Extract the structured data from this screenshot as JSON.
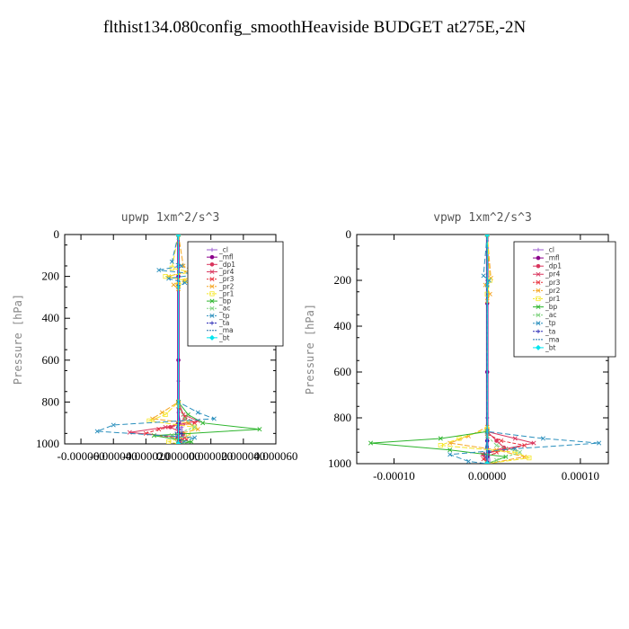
{
  "title": "flthist134.080config_smoothHeaviside  BUDGET at275E,-2N",
  "chart_data": [
    {
      "type": "line",
      "panel_title": "upwp   1xm^2/s^3",
      "ylabel": "Pressure [hPa]",
      "ylim": [
        1000,
        0
      ],
      "xlim": [
        -7e-05,
        6e-05
      ],
      "x_tick_labels": [
        "-0.000060",
        "-0.000040",
        "-0.000020",
        "0.000000",
        "0.000020",
        "0.000040",
        "0.000060"
      ],
      "x_tick_values": [
        -6e-05,
        -4e-05,
        -2e-05,
        0,
        2e-05,
        4e-05,
        6e-05
      ],
      "y_tick_labels": [
        "0",
        "200",
        "400",
        "600",
        "800",
        "1000"
      ],
      "y_tick_values": [
        0,
        200,
        400,
        600,
        800,
        1000
      ],
      "legend": [
        "_cl",
        "_mfl",
        "_dp1",
        "_pr4",
        "_pr3",
        "_pr2",
        "_pr1",
        "_bp",
        "_ac",
        "_tp",
        "_ta",
        "_ma",
        "_bt"
      ],
      "series": [
        {
          "name": "_cl",
          "color": "#9b59d0",
          "marker": "+",
          "dash": "",
          "y": [
            0,
            150,
            200,
            700,
            850,
            920,
            960,
            1000
          ],
          "x": [
            0,
            0,
            0,
            0,
            0,
            2e-06,
            3e-06,
            3e-06
          ]
        },
        {
          "name": "_mfl",
          "color": "#8b008b",
          "marker": "o",
          "dash": "",
          "y": [
            0,
            200,
            600,
            800,
            900,
            950,
            1000
          ],
          "x": [
            0,
            0,
            0,
            0,
            0,
            0,
            0
          ]
        },
        {
          "name": "_dp1",
          "color": "#d9365e",
          "marker": "o",
          "dash": "",
          "y": [
            0,
            800,
            880,
            920,
            950,
            1000
          ],
          "x": [
            0,
            0,
            4e-06,
            -5e-06,
            3e-06,
            0
          ]
        },
        {
          "name": "_pr4",
          "color": "#d9365e",
          "marker": "x",
          "dash": "",
          "y": [
            0,
            800,
            860,
            890,
            920,
            945,
            970,
            1000
          ],
          "x": [
            0,
            0,
            3e-06,
            1.2e-05,
            -8e-06,
            -3e-05,
            4e-06,
            0
          ]
        },
        {
          "name": "_pr3",
          "color": "#e8303c",
          "marker": "x",
          "dash": "4,2",
          "y": [
            0,
            820,
            870,
            900,
            930,
            950,
            980,
            1000
          ],
          "x": [
            0,
            0,
            4e-06,
            1e-05,
            -1.2e-05,
            -2e-05,
            5e-06,
            0
          ]
        },
        {
          "name": "_pr2",
          "color": "#f5a623",
          "marker": "x",
          "dash": "6,2",
          "y": [
            0,
            150,
            170,
            200,
            220,
            240,
            260,
            800,
            850,
            880,
            900,
            930,
            960,
            1000
          ],
          "x": [
            0,
            3e-06,
            8e-06,
            -6e-06,
            4e-06,
            -3e-06,
            0,
            0,
            -1e-05,
            -1.6e-05,
            6e-06,
            1.2e-05,
            -4e-06,
            0
          ]
        },
        {
          "name": "_pr1",
          "color": "#f5e623",
          "marker": "s",
          "dash": "6,2",
          "y": [
            0,
            160,
            180,
            200,
            220,
            240,
            800,
            860,
            890,
            920,
            960,
            990,
            1000
          ],
          "x": [
            0,
            -4e-06,
            8e-06,
            -8e-06,
            5e-06,
            0,
            0,
            -8e-06,
            -1.8e-05,
            1e-05,
            6e-06,
            -6e-06,
            0
          ]
        },
        {
          "name": "_bp",
          "color": "#2db52d",
          "marker": "x",
          "dash": "",
          "y": [
            0,
            800,
            860,
            900,
            930,
            960,
            990,
            1000
          ],
          "x": [
            0,
            0,
            6e-06,
            1.5e-05,
            5e-05,
            -1.5e-05,
            8e-06,
            0
          ]
        },
        {
          "name": "_ac",
          "color": "#7fd37f",
          "marker": "x",
          "dash": "3,2",
          "y": [
            0,
            820,
            880,
            920,
            960,
            1000
          ],
          "x": [
            0,
            0,
            4e-06,
            1e-05,
            -4e-06,
            0
          ]
        },
        {
          "name": "_tp",
          "color": "#2a8fbd",
          "marker": "x",
          "dash": "6,3",
          "y": [
            0,
            130,
            150,
            170,
            190,
            210,
            230,
            250,
            800,
            850,
            880,
            910,
            940,
            970,
            1000
          ],
          "x": [
            0,
            -4e-06,
            2e-06,
            -1.2e-05,
            1.2e-05,
            -6e-06,
            4e-06,
            0,
            0,
            1.2e-05,
            2.2e-05,
            -4e-05,
            -5e-05,
            1e-05,
            0
          ]
        },
        {
          "name": "_ta",
          "color": "#2a2ab5",
          "marker": "+",
          "dash": "3,3",
          "y": [
            0,
            900,
            950,
            1000
          ],
          "x": [
            0,
            0,
            2e-06,
            1e-06
          ]
        },
        {
          "name": "_ma",
          "color": "#1f6fa8",
          "marker": "-",
          "dash": "8,3",
          "y": [
            0,
            900,
            940,
            1000
          ],
          "x": [
            0,
            0,
            -2e-06,
            0
          ]
        },
        {
          "name": "_bt",
          "color": "#00e5ee",
          "marker": "d",
          "dash": "",
          "y": [
            0,
            1000
          ],
          "x": [
            0,
            0
          ]
        }
      ]
    },
    {
      "type": "line",
      "panel_title": "vpwp   1xm^2/s^3",
      "ylabel": "Pressure [hPa]",
      "ylim": [
        1000,
        0
      ],
      "xlim": [
        -0.00014,
        0.00013
      ],
      "x_tick_labels": [
        "-0.00010",
        "0.00000",
        "0.00010"
      ],
      "x_tick_values": [
        -0.0001,
        0,
        0.0001
      ],
      "y_tick_labels": [
        "0",
        "200",
        "400",
        "600",
        "800",
        "1000"
      ],
      "y_tick_values": [
        0,
        200,
        400,
        600,
        800,
        1000
      ],
      "legend": [
        "_cl",
        "_mfl",
        "_dp1",
        "_pr4",
        "_pr3",
        "_pr2",
        "_pr1",
        "_bp",
        "_ac",
        "_tp",
        "_ta",
        "_ma",
        "_bt"
      ],
      "series": [
        {
          "name": "_cl",
          "color": "#9b59d0",
          "marker": "+",
          "dash": "",
          "y": [
            0,
            200,
            800,
            900,
            950,
            1000
          ],
          "x": [
            0,
            0,
            0,
            0,
            2e-06,
            3e-06
          ]
        },
        {
          "name": "_mfl",
          "color": "#8b008b",
          "marker": "o",
          "dash": "",
          "y": [
            0,
            300,
            600,
            900,
            1000
          ],
          "x": [
            0,
            0,
            0,
            0,
            0
          ]
        },
        {
          "name": "_dp1",
          "color": "#d9365e",
          "marker": "o",
          "dash": "",
          "y": [
            0,
            860,
            900,
            930,
            960,
            1000
          ],
          "x": [
            0,
            0,
            1e-05,
            1.8e-05,
            -4e-06,
            0
          ]
        },
        {
          "name": "_pr4",
          "color": "#d9365e",
          "marker": "x",
          "dash": "",
          "y": [
            0,
            860,
            890,
            910,
            935,
            960,
            1000
          ],
          "x": [
            0,
            0,
            3e-05,
            5e-05,
            2e-05,
            -5e-06,
            0
          ]
        },
        {
          "name": "_pr3",
          "color": "#e8303c",
          "marker": "x",
          "dash": "4,2",
          "y": [
            0,
            870,
            900,
            920,
            950,
            980,
            1000
          ],
          "x": [
            0,
            0,
            1.5e-05,
            4e-05,
            1e-05,
            -4e-06,
            0
          ]
        },
        {
          "name": "_pr2",
          "color": "#f5a623",
          "marker": "x",
          "dash": "6,2",
          "y": [
            0,
            190,
            220,
            260,
            290,
            840,
            880,
            910,
            940,
            970,
            1000
          ],
          "x": [
            0,
            4e-06,
            -2e-06,
            3e-06,
            0,
            0,
            -2e-05,
            -4e-05,
            1e-05,
            4e-05,
            0
          ]
        },
        {
          "name": "_pr1",
          "color": "#f5e623",
          "marker": "s",
          "dash": "6,2",
          "y": [
            0,
            200,
            260,
            850,
            890,
            920,
            950,
            975,
            1000
          ],
          "x": [
            0,
            3e-06,
            0,
            0,
            -3e-05,
            -5e-05,
            3e-05,
            4.5e-05,
            0
          ]
        },
        {
          "name": "_bp",
          "color": "#2db52d",
          "marker": "x",
          "dash": "",
          "y": [
            0,
            860,
            890,
            910,
            940,
            970,
            1000
          ],
          "x": [
            0,
            0,
            -5e-05,
            -0.000125,
            -4e-05,
            2e-05,
            0
          ]
        },
        {
          "name": "_ac",
          "color": "#7fd37f",
          "marker": "x",
          "dash": "3,2",
          "y": [
            0,
            880,
            920,
            950,
            985,
            1000
          ],
          "x": [
            0,
            0,
            1e-05,
            3.5e-05,
            1e-05,
            0
          ]
        },
        {
          "name": "_tp",
          "color": "#2a8fbd",
          "marker": "x",
          "dash": "6,3",
          "y": [
            0,
            180,
            200,
            220,
            860,
            890,
            910,
            935,
            960,
            990,
            1000
          ],
          "x": [
            0,
            -4e-06,
            2e-06,
            0,
            0,
            6e-05,
            0.00012,
            3e-05,
            -4e-05,
            -2e-05,
            0
          ]
        },
        {
          "name": "_ta",
          "color": "#2a2ab5",
          "marker": "+",
          "dash": "3,3",
          "y": [
            0,
            900,
            950,
            1000
          ],
          "x": [
            0,
            0,
            2e-06,
            1e-06
          ]
        },
        {
          "name": "_ma",
          "color": "#1f6fa8",
          "marker": "-",
          "dash": "8,3",
          "y": [
            0,
            900,
            950,
            1000
          ],
          "x": [
            0,
            0,
            -3e-06,
            0
          ]
        },
        {
          "name": "_bt",
          "color": "#00e5ee",
          "marker": "d",
          "dash": "",
          "y": [
            0,
            1000
          ],
          "x": [
            0,
            0
          ]
        }
      ]
    }
  ]
}
